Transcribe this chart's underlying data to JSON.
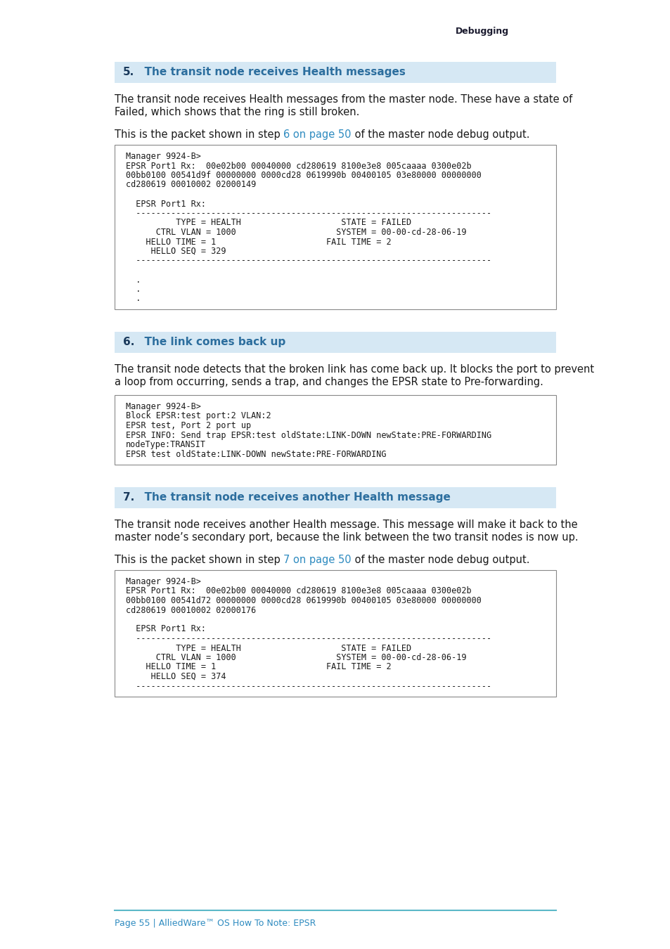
{
  "page_bg": "#ffffff",
  "header_text": "Debugging",
  "header_color": "#1a1a2e",
  "section_bg": "#d6e8f4",
  "section_number_color": "#1a3a5c",
  "section_title_color": "#2c6e9e",
  "body_text_color": "#1a1a1a",
  "link_color": "#2e8bc0",
  "code_bg": "#ffffff",
  "code_border": "#888888",
  "footer_line_color": "#5bb8c8",
  "footer_text_color": "#2e8bc0",
  "section5_number": "5.",
  "section5_title": "  The transit node receives Health messages",
  "section5_para1_line1": "The transit node receives Health messages from the master node. These have a state of",
  "section5_para1_line2": "Failed, which shows that the ring is still broken.",
  "section5_para2_pre": "This is the packet shown in step ",
  "section5_para2_link": "6 on page 50",
  "section5_para2_post": " of the master node debug output.",
  "section5_code_lines": [
    "Manager 9924-B>",
    "EPSR Port1 Rx:  00e02b00 00040000 cd280619 8100e3e8 005caaaa 0300e02b",
    "00bb0100 00541d9f 00000000 0000cd28 0619990b 00400105 03e80000 00000000",
    "cd280619 00010002 02000149",
    "",
    "  EPSR Port1 Rx:",
    "  -----------------------------------------------------------------------",
    "          TYPE = HEALTH                    STATE = FAILED",
    "      CTRL VLAN = 1000                    SYSTEM = 00-00-cd-28-06-19",
    "    HELLO TIME = 1                      FAIL TIME = 2",
    "     HELLO SEQ = 329",
    "  -----------------------------------------------------------------------",
    "",
    "  .",
    "  .",
    "  ."
  ],
  "section6_number": "6.",
  "section6_title": "  The link comes back up",
  "section6_para1_line1": "The transit node detects that the broken link has come back up. It blocks the port to prevent",
  "section6_para1_line2": "a loop from occurring, sends a trap, and changes the EPSR state to Pre-forwarding.",
  "section6_code_lines": [
    "Manager 9924-B>",
    "Block EPSR:test port:2 VLAN:2",
    "EPSR test, Port 2 port up",
    "EPSR INFO: Send trap EPSR:test oldState:LINK-DOWN newState:PRE-FORWARDING",
    "nodeType:TRANSIT",
    "EPSR test oldState:LINK-DOWN newState:PRE-FORWARDING"
  ],
  "section7_number": "7.",
  "section7_title": "  The transit node receives another Health message",
  "section7_para1_line1": "The transit node receives another Health message. This message will make it back to the",
  "section7_para1_line2": "master node’s secondary port, because the link between the two transit nodes is now up.",
  "section7_para2_pre": "This is the packet shown in step ",
  "section7_para2_link": "7 on page 50",
  "section7_para2_post": " of the master node debug output.",
  "section7_code_lines": [
    "Manager 9924-B>",
    "EPSR Port1 Rx:  00e02b00 00040000 cd280619 8100e3e8 005caaaa 0300e02b",
    "00bb0100 00541d72 00000000 0000cd28 0619990b 00400105 03e80000 00000000",
    "cd280619 00010002 02000176",
    "",
    "  EPSR Port1 Rx:",
    "  -----------------------------------------------------------------------",
    "          TYPE = HEALTH                    STATE = FAILED",
    "      CTRL VLAN = 1000                    SYSTEM = 00-00-cd-28-06-19",
    "    HELLO TIME = 1                      FAIL TIME = 2",
    "     HELLO SEQ = 374",
    "  -----------------------------------------------------------------------"
  ],
  "footer_text": "Page 55 | AlliedWare™ OS How To Note: EPSR"
}
